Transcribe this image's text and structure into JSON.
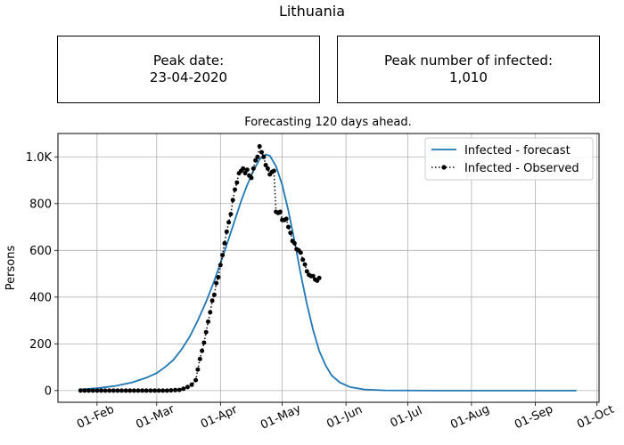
{
  "figure_title": "Lithuania",
  "peak_date_box": {
    "label": "Peak date:",
    "value": "23-04-2020"
  },
  "peak_count_box": {
    "label": "Peak number of infected:",
    "value": "1,010"
  },
  "chart_data": {
    "type": "line",
    "title": "Forecasting 120 days ahead.",
    "xlabel": "",
    "ylabel": "Persons",
    "x_axis": "date",
    "xlim": [
      "2020-01-13",
      "2020-10-02"
    ],
    "ylim": [
      -50,
      1100
    ],
    "x_ticks": [
      {
        "date": "2020-02-01",
        "label": "01-Feb"
      },
      {
        "date": "2020-03-01",
        "label": "01-Mar"
      },
      {
        "date": "2020-04-01",
        "label": "01-Apr"
      },
      {
        "date": "2020-05-01",
        "label": "01-May"
      },
      {
        "date": "2020-06-01",
        "label": "01-Jun"
      },
      {
        "date": "2020-07-01",
        "label": "01-Jul"
      },
      {
        "date": "2020-08-01",
        "label": "01-Aug"
      },
      {
        "date": "2020-09-01",
        "label": "01-Sep"
      },
      {
        "date": "2020-10-01",
        "label": "01-Oct"
      }
    ],
    "y_ticks": [
      {
        "value": 0,
        "label": "0"
      },
      {
        "value": 200,
        "label": "200"
      },
      {
        "value": 400,
        "label": "400"
      },
      {
        "value": 600,
        "label": "600"
      },
      {
        "value": 800,
        "label": "800"
      },
      {
        "value": 1000,
        "label": "1.0K"
      }
    ],
    "grid": true,
    "legend_position": "top-right",
    "series": [
      {
        "name": "Infected - forecast",
        "style": "solid",
        "color": "#1f77b4",
        "points": [
          [
            "2020-01-23",
            5
          ],
          [
            "2020-02-01",
            10
          ],
          [
            "2020-02-10",
            20
          ],
          [
            "2020-02-18",
            35
          ],
          [
            "2020-02-25",
            55
          ],
          [
            "2020-03-01",
            75
          ],
          [
            "2020-03-05",
            100
          ],
          [
            "2020-03-09",
            130
          ],
          [
            "2020-03-13",
            175
          ],
          [
            "2020-03-17",
            230
          ],
          [
            "2020-03-21",
            300
          ],
          [
            "2020-03-25",
            380
          ],
          [
            "2020-03-29",
            470
          ],
          [
            "2020-04-02",
            570
          ],
          [
            "2020-04-05",
            650
          ],
          [
            "2020-04-08",
            730
          ],
          [
            "2020-04-11",
            810
          ],
          [
            "2020-04-14",
            880
          ],
          [
            "2020-04-17",
            940
          ],
          [
            "2020-04-20",
            990
          ],
          [
            "2020-04-23",
            1010
          ],
          [
            "2020-04-25",
            1005
          ],
          [
            "2020-04-28",
            960
          ],
          [
            "2020-05-01",
            880
          ],
          [
            "2020-05-04",
            770
          ],
          [
            "2020-05-07",
            640
          ],
          [
            "2020-05-10",
            500
          ],
          [
            "2020-05-13",
            370
          ],
          [
            "2020-05-16",
            260
          ],
          [
            "2020-05-19",
            170
          ],
          [
            "2020-05-22",
            110
          ],
          [
            "2020-05-25",
            65
          ],
          [
            "2020-05-29",
            35
          ],
          [
            "2020-06-03",
            15
          ],
          [
            "2020-06-10",
            5
          ],
          [
            "2020-06-20",
            1
          ],
          [
            "2020-07-15",
            0
          ],
          [
            "2020-08-15",
            0
          ],
          [
            "2020-09-21",
            0
          ]
        ]
      },
      {
        "name": "Infected - Observed",
        "style": "dotted",
        "marker": "circle",
        "color": "#000000",
        "points": [
          [
            "2020-01-24",
            0
          ],
          [
            "2020-01-26",
            0
          ],
          [
            "2020-01-28",
            0
          ],
          [
            "2020-01-30",
            0
          ],
          [
            "2020-02-01",
            0
          ],
          [
            "2020-02-03",
            0
          ],
          [
            "2020-02-05",
            0
          ],
          [
            "2020-02-07",
            0
          ],
          [
            "2020-02-09",
            0
          ],
          [
            "2020-02-11",
            0
          ],
          [
            "2020-02-13",
            0
          ],
          [
            "2020-02-15",
            0
          ],
          [
            "2020-02-17",
            0
          ],
          [
            "2020-02-19",
            0
          ],
          [
            "2020-02-21",
            0
          ],
          [
            "2020-02-23",
            0
          ],
          [
            "2020-02-25",
            0
          ],
          [
            "2020-02-27",
            0
          ],
          [
            "2020-02-29",
            0
          ],
          [
            "2020-03-02",
            0
          ],
          [
            "2020-03-04",
            0
          ],
          [
            "2020-03-06",
            0
          ],
          [
            "2020-03-08",
            1
          ],
          [
            "2020-03-10",
            2
          ],
          [
            "2020-03-12",
            3
          ],
          [
            "2020-03-14",
            8
          ],
          [
            "2020-03-16",
            15
          ],
          [
            "2020-03-18",
            25
          ],
          [
            "2020-03-20",
            45
          ],
          [
            "2020-03-21",
            90
          ],
          [
            "2020-03-22",
            135
          ],
          [
            "2020-03-23",
            170
          ],
          [
            "2020-03-24",
            205
          ],
          [
            "2020-03-25",
            250
          ],
          [
            "2020-03-26",
            295
          ],
          [
            "2020-03-27",
            335
          ],
          [
            "2020-03-28",
            385
          ],
          [
            "2020-03-29",
            410
          ],
          [
            "2020-03-30",
            460
          ],
          [
            "2020-03-31",
            485
          ],
          [
            "2020-04-01",
            537
          ],
          [
            "2020-04-02",
            580
          ],
          [
            "2020-04-03",
            630
          ],
          [
            "2020-04-04",
            680
          ],
          [
            "2020-04-05",
            720
          ],
          [
            "2020-04-06",
            755
          ],
          [
            "2020-04-07",
            815
          ],
          [
            "2020-04-08",
            860
          ],
          [
            "2020-04-09",
            890
          ],
          [
            "2020-04-10",
            930
          ],
          [
            "2020-04-11",
            940
          ],
          [
            "2020-04-12",
            950
          ],
          [
            "2020-04-13",
            930
          ],
          [
            "2020-04-14",
            945
          ],
          [
            "2020-04-15",
            920
          ],
          [
            "2020-04-16",
            910
          ],
          [
            "2020-04-17",
            950
          ],
          [
            "2020-04-18",
            985
          ],
          [
            "2020-04-19",
            1000
          ],
          [
            "2020-04-20",
            1045
          ],
          [
            "2020-04-21",
            1020
          ],
          [
            "2020-04-22",
            1000
          ],
          [
            "2020-04-23",
            965
          ],
          [
            "2020-04-24",
            950
          ],
          [
            "2020-04-25",
            925
          ],
          [
            "2020-04-26",
            935
          ],
          [
            "2020-04-27",
            940
          ],
          [
            "2020-04-28",
            765
          ],
          [
            "2020-04-29",
            760
          ],
          [
            "2020-04-30",
            765
          ],
          [
            "2020-05-01",
            730
          ],
          [
            "2020-05-02",
            730
          ],
          [
            "2020-05-03",
            735
          ],
          [
            "2020-05-04",
            700
          ],
          [
            "2020-05-05",
            675
          ],
          [
            "2020-05-06",
            640
          ],
          [
            "2020-05-07",
            630
          ],
          [
            "2020-05-08",
            605
          ],
          [
            "2020-05-09",
            600
          ],
          [
            "2020-05-10",
            590
          ],
          [
            "2020-05-11",
            560
          ],
          [
            "2020-05-12",
            540
          ],
          [
            "2020-05-13",
            510
          ],
          [
            "2020-05-14",
            495
          ],
          [
            "2020-05-15",
            490
          ],
          [
            "2020-05-16",
            490
          ],
          [
            "2020-05-17",
            475
          ],
          [
            "2020-05-18",
            470
          ],
          [
            "2020-05-19",
            482
          ]
        ]
      }
    ]
  }
}
